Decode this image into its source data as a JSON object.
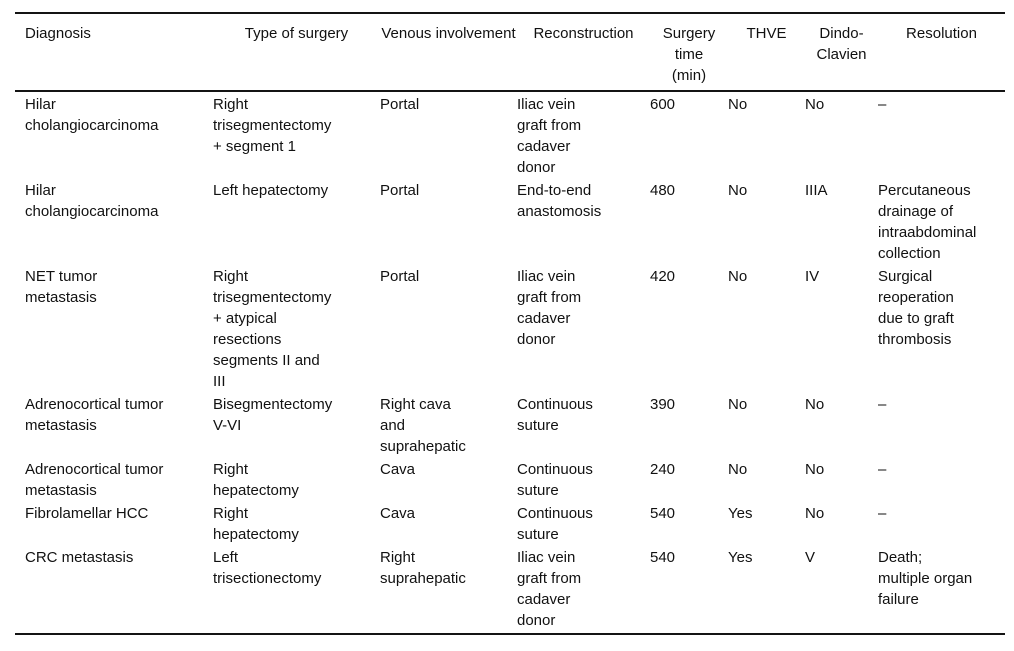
{
  "table": {
    "columns": [
      "Diagnosis",
      "Type of surgery",
      "Venous involvement",
      "Reconstruction",
      "Surgery time (min)",
      "THVE",
      "Dindo-Clavien",
      "Resolution"
    ],
    "rows": [
      [
        "Hilar cholangiocarcinoma",
        "Right trisegmentectomy + segment 1",
        "Portal",
        "Iliac vein graft from cadaver donor",
        "600",
        "No",
        "No",
        "–"
      ],
      [
        "Hilar cholangiocarcinoma",
        "Left hepatectomy",
        "Portal",
        "End-to-end anastomosis",
        "480",
        "No",
        "IIIA",
        "Percutaneous drainage of intraabdominal collection"
      ],
      [
        "NET tumor metastasis",
        "Right trisegmentectomy + atypical resections segments II and III",
        "Portal",
        "Iliac vein graft from cadaver donor",
        "420",
        "No",
        "IV",
        "Surgical reoperation due to graft thrombosis"
      ],
      [
        "Adrenocortical tumor metastasis",
        "Bisegmentectomy V-VI",
        "Right cava and suprahepatic",
        "Continuous suture",
        "390",
        "No",
        "No",
        "–"
      ],
      [
        "Adrenocortical tumor metastasis",
        "Right hepatectomy",
        "Cava",
        "Continuous suture",
        "240",
        "No",
        "No",
        "–"
      ],
      [
        "Fibrolamellar HCC",
        "Right hepatectomy",
        "Cava",
        "Continuous suture",
        "540",
        "Yes",
        "No",
        "–"
      ],
      [
        "CRC metastasis",
        "Left trisectionectomy",
        "Right suprahepatic",
        "Iliac vein graft from cadaver donor",
        "540",
        "Yes",
        "V",
        "Death; multiple organ failure"
      ]
    ]
  }
}
